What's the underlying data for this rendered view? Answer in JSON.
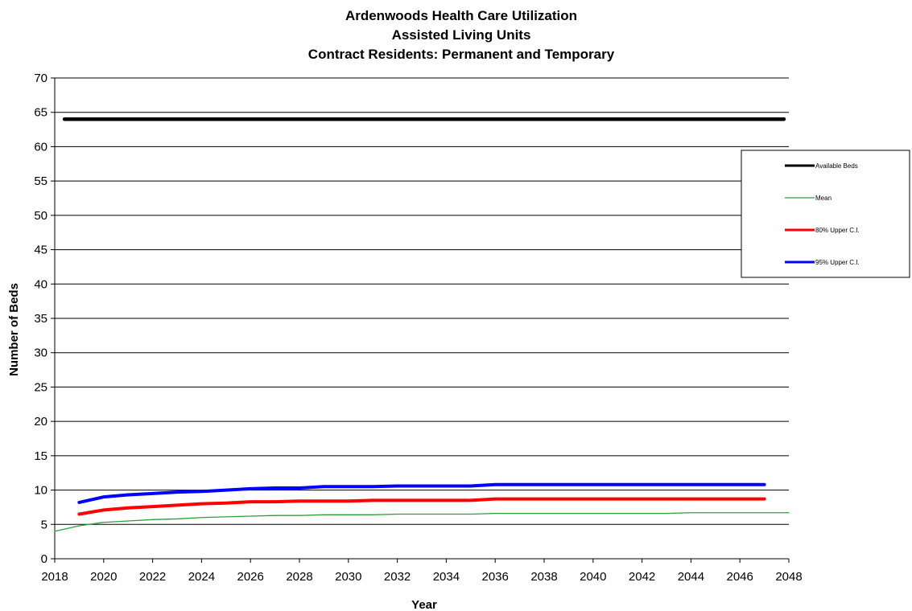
{
  "chart_data": {
    "type": "line",
    "title_lines": [
      "Ardenwoods Health Care Utilization",
      "Assisted Living Units",
      "Contract Residents: Permanent and Temporary"
    ],
    "xlabel": "Year",
    "ylabel": "Number of Beds",
    "xlim": [
      2018,
      2048
    ],
    "ylim": [
      0,
      70
    ],
    "x_ticks": [
      "2018",
      "2020",
      "2022",
      "2024",
      "2026",
      "2028",
      "2030",
      "2032",
      "2034",
      "2036",
      "2038",
      "2040",
      "2042",
      "2044",
      "2046",
      "2048"
    ],
    "y_ticks": [
      "0",
      "5",
      "10",
      "15",
      "20",
      "25",
      "30",
      "35",
      "40",
      "45",
      "50",
      "55",
      "60",
      "65",
      "70"
    ],
    "grid": "horizontal",
    "legend_position": "right",
    "series": [
      {
        "name": "Available Beds",
        "color": "#000000",
        "x": [
          2018,
          2048
        ],
        "y": [
          64,
          64
        ]
      },
      {
        "name": "Mean",
        "color": "#2e9e3a",
        "x": [
          2018,
          2019,
          2020,
          2021,
          2022,
          2023,
          2024,
          2025,
          2026,
          2027,
          2028,
          2029,
          2030,
          2031,
          2032,
          2033,
          2034,
          2035,
          2036,
          2037,
          2038,
          2039,
          2040,
          2041,
          2042,
          2043,
          2044,
          2045,
          2046,
          2047,
          2048
        ],
        "y": [
          4.0,
          4.8,
          5.3,
          5.5,
          5.7,
          5.8,
          6.0,
          6.1,
          6.2,
          6.3,
          6.3,
          6.4,
          6.4,
          6.4,
          6.5,
          6.5,
          6.5,
          6.5,
          6.6,
          6.6,
          6.6,
          6.6,
          6.6,
          6.6,
          6.6,
          6.6,
          6.7,
          6.7,
          6.7,
          6.7,
          6.7
        ]
      },
      {
        "name": "80% Upper C.I.",
        "color": "#ff0000",
        "x": [
          2019,
          2020,
          2021,
          2022,
          2023,
          2024,
          2025,
          2026,
          2027,
          2028,
          2029,
          2030,
          2031,
          2032,
          2033,
          2034,
          2035,
          2036,
          2037,
          2038,
          2039,
          2040,
          2041,
          2042,
          2043,
          2044,
          2045,
          2046,
          2047
        ],
        "y": [
          6.5,
          7.1,
          7.4,
          7.6,
          7.8,
          8.0,
          8.1,
          8.3,
          8.3,
          8.4,
          8.4,
          8.4,
          8.5,
          8.5,
          8.5,
          8.5,
          8.5,
          8.7,
          8.7,
          8.7,
          8.7,
          8.7,
          8.7,
          8.7,
          8.7,
          8.7,
          8.7,
          8.7,
          8.7
        ]
      },
      {
        "name": "95% Upper C.I.",
        "color": "#0000ff",
        "x": [
          2019,
          2020,
          2021,
          2022,
          2023,
          2024,
          2025,
          2026,
          2027,
          2028,
          2029,
          2030,
          2031,
          2032,
          2033,
          2034,
          2035,
          2036,
          2037,
          2038,
          2039,
          2040,
          2041,
          2042,
          2043,
          2044,
          2045,
          2046,
          2047
        ],
        "y": [
          8.2,
          9.0,
          9.3,
          9.5,
          9.7,
          9.8,
          10.0,
          10.2,
          10.3,
          10.3,
          10.5,
          10.5,
          10.5,
          10.6,
          10.6,
          10.6,
          10.6,
          10.8,
          10.8,
          10.8,
          10.8,
          10.8,
          10.8,
          10.8,
          10.8,
          10.8,
          10.8,
          10.8,
          10.8
        ]
      }
    ]
  }
}
